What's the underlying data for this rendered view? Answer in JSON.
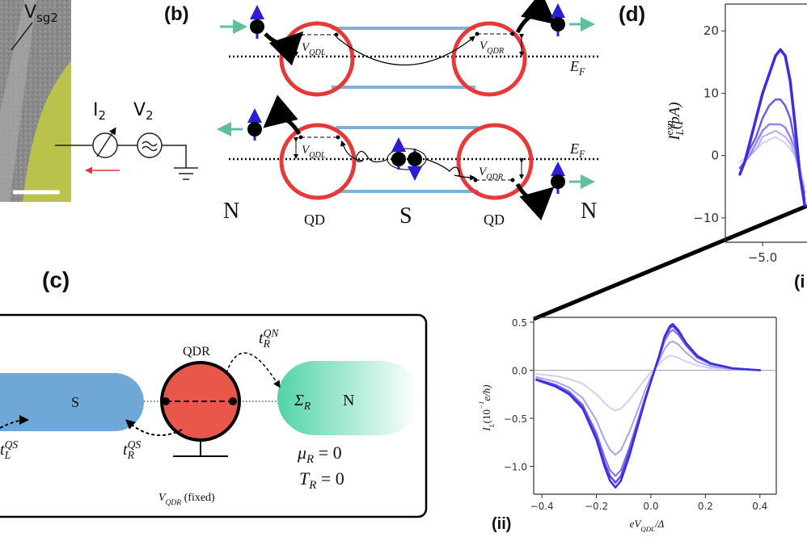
{
  "panel_a": {
    "gate_label": [
      [
        "V",
        "roman"
      ],
      [
        "sg2",
        "sub"
      ]
    ],
    "current_label": [
      [
        "I",
        "roman"
      ],
      [
        "2",
        "sub"
      ]
    ],
    "voltage_label": [
      [
        "V",
        "roman"
      ],
      [
        "2",
        "sub"
      ]
    ]
  },
  "panel_b": {
    "label": "(b)",
    "top_row": {
      "left_level": [
        [
          "V",
          "base"
        ],
        [
          "QDL",
          "sub"
        ]
      ],
      "right_level": [
        [
          "V",
          "base"
        ],
        [
          "QDR",
          "sub"
        ]
      ],
      "fermi": [
        [
          "E",
          "base"
        ],
        [
          "F",
          "sub"
        ]
      ]
    },
    "bottom_row": {
      "left_level": [
        [
          "V",
          "base"
        ],
        [
          "QDL",
          "sub"
        ]
      ],
      "right_level": [
        [
          "V",
          "base"
        ],
        [
          "QDR",
          "sub"
        ]
      ],
      "fermi": [
        [
          "E",
          "base"
        ],
        [
          "F",
          "sub"
        ]
      ]
    },
    "lead_left": "N",
    "dot_left": "QD",
    "superconductor": "S",
    "dot_right": "QD",
    "lead_right": "N"
  },
  "panel_c": {
    "label": "(c)",
    "superconductor": "S",
    "dot": "QDR",
    "lead": "N",
    "self_energy": [
      [
        "Σ",
        "base"
      ],
      [
        "R",
        "sub"
      ]
    ],
    "coupling_qn": [
      [
        "t",
        "base"
      ],
      [
        "QN",
        "sup"
      ],
      [
        "R",
        "substack"
      ]
    ],
    "coupling_ls": [
      [
        "t",
        "base"
      ],
      [
        "QS",
        "sup"
      ],
      [
        "L",
        "substack"
      ]
    ],
    "coupling_rs": [
      [
        "t",
        "base"
      ],
      [
        "QS",
        "sup"
      ],
      [
        "R",
        "substack"
      ]
    ],
    "chemical_potential": [
      [
        "μ",
        "base"
      ],
      [
        "R",
        "sub"
      ],
      [
        " = 0",
        "roman"
      ]
    ],
    "temperature": [
      [
        "T",
        "base"
      ],
      [
        "R",
        "sub"
      ],
      [
        " = 0",
        "roman"
      ]
    ],
    "gate": [
      [
        "V",
        "base"
      ],
      [
        "QDR",
        "sub"
      ],
      [
        " (fixed)",
        "roman"
      ]
    ]
  },
  "panel_i_label": "(i",
  "chart_data": [
    {
      "type": "line",
      "panel_label": "(d)",
      "ylabel": [
        [
          "I",
          "base"
        ],
        [
          "exp",
          "sup"
        ],
        [
          "L",
          "substack"
        ],
        [
          "(pA)",
          "base"
        ]
      ],
      "x": [
        -5.7,
        -5.55,
        -5.4,
        -5.2,
        -5.0,
        -4.8,
        -4.6,
        -4.45,
        -4.3,
        -4.15,
        -4.0,
        -3.85,
        -3.7
      ],
      "xlim": [
        -6.15,
        -3.63
      ],
      "ylim": [
        -13.9,
        24.3
      ],
      "xticks": [
        {
          "value": -5.0,
          "label": "−5.0"
        }
      ],
      "yticks": [
        20,
        10,
        0,
        {
          "value": -10,
          "label": "−10"
        }
      ],
      "series": [
        {
          "color": "#d3d0f7",
          "values": [
            -1,
            -0.5,
            0,
            1,
            2,
            2.5,
            3,
            2.5,
            2,
            1,
            0,
            -2,
            -5
          ]
        },
        {
          "color": "#b4aef1",
          "values": [
            -2,
            -1,
            0,
            1,
            3,
            3.5,
            4,
            3.5,
            3,
            2,
            0,
            -3,
            -6
          ]
        },
        {
          "color": "#9088ec",
          "values": [
            -2,
            -1,
            0,
            2,
            4,
            5,
            5,
            5,
            4.5,
            3,
            1,
            -3,
            -6
          ]
        },
        {
          "color": "#6a5de7",
          "values": [
            -2,
            -1,
            1,
            3,
            6,
            8,
            9,
            9,
            8,
            6,
            2,
            -3,
            -7
          ]
        },
        {
          "color": "#3b2de0",
          "values": [
            -3,
            -1,
            2,
            6,
            10,
            13,
            16,
            17,
            16,
            12,
            5,
            -3,
            -8
          ]
        }
      ]
    },
    {
      "type": "line",
      "panel_label": "(ii)",
      "xlabel": [
        [
          "eV",
          "base"
        ],
        [
          "QDL",
          "sub"
        ],
        [
          "/Δ",
          "base"
        ]
      ],
      "ylabel": [
        [
          "I",
          "base"
        ],
        [
          "L",
          "sub"
        ],
        [
          "(10",
          "roman"
        ],
        [
          "−1",
          "sup"
        ],
        [
          "e/ħ)",
          "base"
        ]
      ],
      "x": [
        -0.42,
        -0.35,
        -0.3,
        -0.25,
        -0.2,
        -0.17,
        -0.15,
        -0.13,
        -0.11,
        -0.08,
        -0.05,
        -0.02,
        0.0,
        0.03,
        0.05,
        0.07,
        0.08,
        0.1,
        0.13,
        0.17,
        0.22,
        0.3,
        0.4
      ],
      "xlim": [
        -0.43,
        0.46
      ],
      "ylim": [
        -1.29,
        0.55
      ],
      "xticks": [
        {
          "value": -0.4,
          "label": "−0.4"
        },
        {
          "value": -0.2,
          "label": "−0.2"
        },
        {
          "value": 0,
          "label": "0.0"
        },
        0.2,
        0.4
      ],
      "yticks": [
        0.5,
        {
          "value": 0,
          "label": "0.0"
        },
        {
          "value": -0.5,
          "label": "−0.5"
        },
        {
          "value": -1.0,
          "label": "−1.0"
        }
      ],
      "zero_line": true,
      "series": [
        {
          "color": "#d3d0f7",
          "values": [
            -0.04,
            -0.06,
            -0.09,
            -0.14,
            -0.25,
            -0.34,
            -0.39,
            -0.42,
            -0.4,
            -0.31,
            -0.2,
            -0.09,
            -0.02,
            0.06,
            0.12,
            0.15,
            0.15,
            0.13,
            0.09,
            0.05,
            0.02,
            0.01,
            0.0
          ]
        },
        {
          "color": "#a9a3ef",
          "values": [
            -0.07,
            -0.12,
            -0.18,
            -0.29,
            -0.52,
            -0.72,
            -0.83,
            -0.88,
            -0.83,
            -0.65,
            -0.43,
            -0.2,
            -0.07,
            0.1,
            0.22,
            0.29,
            0.3,
            0.27,
            0.18,
            0.09,
            0.04,
            0.01,
            0.0
          ]
        },
        {
          "color": "#7b70ea",
          "values": [
            -0.09,
            -0.15,
            -0.22,
            -0.36,
            -0.65,
            -0.9,
            -1.04,
            -1.1,
            -1.04,
            -0.81,
            -0.54,
            -0.27,
            -0.11,
            0.13,
            0.3,
            0.4,
            0.42,
            0.37,
            0.25,
            0.13,
            0.06,
            0.02,
            0.0
          ]
        },
        {
          "color": "#5a4be6",
          "values": [
            -0.1,
            -0.16,
            -0.24,
            -0.38,
            -0.69,
            -0.96,
            -1.1,
            -1.17,
            -1.1,
            -0.86,
            -0.58,
            -0.29,
            -0.12,
            0.14,
            0.34,
            0.44,
            0.46,
            0.4,
            0.27,
            0.14,
            0.07,
            0.02,
            0.0
          ]
        },
        {
          "color": "#3b2de0",
          "values": [
            -0.1,
            -0.17,
            -0.25,
            -0.4,
            -0.72,
            -1.0,
            -1.15,
            -1.22,
            -1.15,
            -0.9,
            -0.6,
            -0.3,
            -0.12,
            0.15,
            0.35,
            0.46,
            0.48,
            0.42,
            0.28,
            0.15,
            0.07,
            0.02,
            0.0
          ]
        }
      ]
    }
  ]
}
